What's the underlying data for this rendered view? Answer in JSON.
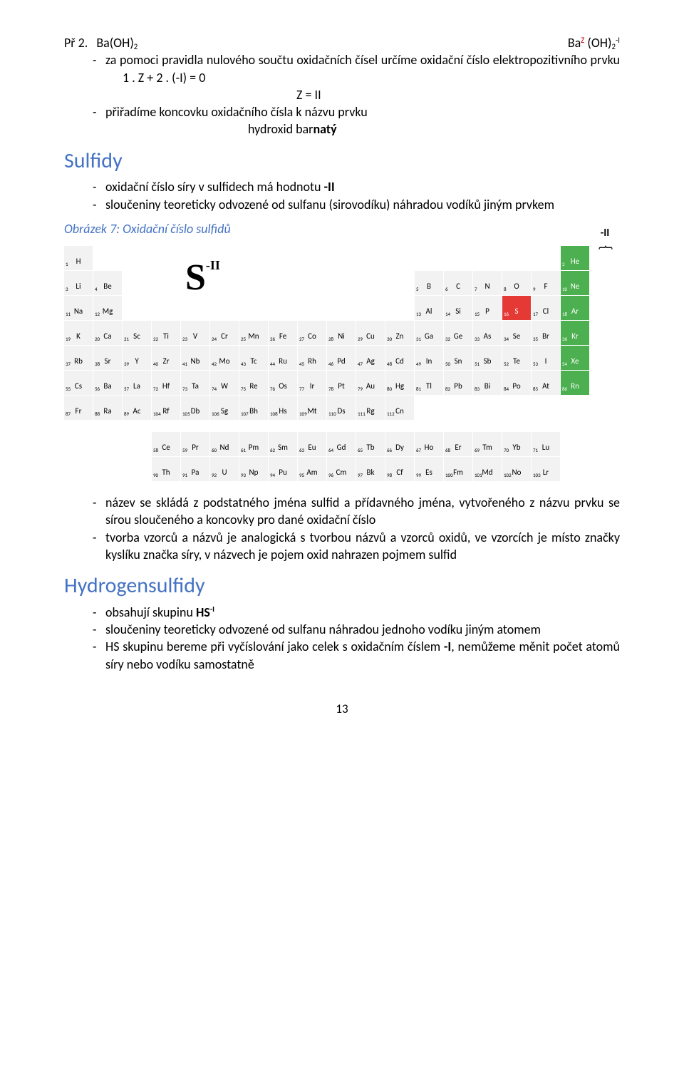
{
  "ex_prefix": "Př 2.",
  "formula_left": "Ba(OH)",
  "formula_right_ba": "Ba",
  "formula_right_oh": "(OH)",
  "formula_z": "Z",
  "formula_two": "2",
  "formula_neg_i": "-I",
  "rule1": "za pomoci pravidla nulového součtu oxidačních čísel určíme oxidační číslo elektropozitivního prvku",
  "rule1_eq": "1 . Z  + 2 . (-I) = 0",
  "rule1_eq2": "Z = II",
  "rule2": "přiřadíme koncovku oxidačního čísla k názvu prvku",
  "rule2_res_pre": "hydroxid bar",
  "rule2_res_bold": "natý",
  "sulfidy_head": "Sulfidy",
  "sulfidy_b1_pre": "oxidační číslo síry v sulfidech má hodnotu ",
  "sulfidy_b1_bold": "-II",
  "sulfidy_b2": "sloučeniny teoreticky odvozené od sulfanu (sirovodíku) náhradou vodíků jiným prvkem",
  "fig_caption": "Obrázek 7: Oxidační číslo sulfidů",
  "brace_label": "-II",
  "s_symbol": "S",
  "s_charge": "-II",
  "s2_b1": "název se skládá z podstatného jména sulfid a přídavného jména, vytvořeného z názvu prvku se sírou sloučeného a koncovky pro dané oxidační číslo",
  "s2_b2": "tvorba vzorců a názvů je analogická s tvorbou názvů a vzorců oxidů, ve vzorcích je místo značky kyslíku značka síry, v názvech je pojem oxid nahrazen pojmem sulfid",
  "hs_head": "Hydrogensulfidy",
  "hs_b1_pre": "obsahují skupinu ",
  "hs_b1_bold": "HS",
  "hs_b1_sup": "-I",
  "hs_b2": "sloučeniny teoreticky odvozené od sulfanu náhradou jednoho vodíku jiným atomem",
  "hs_b3_pre": "HS skupinu bereme při vyčíslování jako celek s oxidačním číslem ",
  "hs_b3_bold": "-I",
  "hs_b3_post": ", nemůžeme měnit počet atomů síry nebo vodíku samostatně",
  "page_num": "13",
  "ptable": {
    "rows": [
      [
        {
          "n": 1,
          "s": "H"
        },
        null,
        null,
        null,
        null,
        null,
        null,
        null,
        null,
        null,
        null,
        null,
        null,
        null,
        null,
        null,
        null,
        {
          "n": 2,
          "s": "He",
          "c": "green"
        }
      ],
      [
        {
          "n": 3,
          "s": "Li"
        },
        {
          "n": 4,
          "s": "Be"
        },
        null,
        null,
        null,
        null,
        null,
        null,
        null,
        null,
        null,
        null,
        {
          "n": 5,
          "s": "B"
        },
        {
          "n": 6,
          "s": "C"
        },
        {
          "n": 7,
          "s": "N"
        },
        {
          "n": 8,
          "s": "O"
        },
        {
          "n": 9,
          "s": "F"
        },
        {
          "n": 10,
          "s": "Ne",
          "c": "green"
        }
      ],
      [
        {
          "n": 11,
          "s": "Na"
        },
        {
          "n": 12,
          "s": "Mg"
        },
        null,
        null,
        null,
        null,
        null,
        null,
        null,
        null,
        null,
        null,
        {
          "n": 13,
          "s": "Al"
        },
        {
          "n": 14,
          "s": "Si"
        },
        {
          "n": 15,
          "s": "P"
        },
        {
          "n": 16,
          "s": "S",
          "c": "red"
        },
        {
          "n": 17,
          "s": "Cl"
        },
        {
          "n": 18,
          "s": "Ar",
          "c": "green"
        }
      ],
      [
        {
          "n": 19,
          "s": "K"
        },
        {
          "n": 20,
          "s": "Ca"
        },
        {
          "n": 21,
          "s": "Sc"
        },
        {
          "n": 22,
          "s": "Ti"
        },
        {
          "n": 23,
          "s": "V"
        },
        {
          "n": 24,
          "s": "Cr"
        },
        {
          "n": 25,
          "s": "Mn"
        },
        {
          "n": 26,
          "s": "Fe"
        },
        {
          "n": 27,
          "s": "Co"
        },
        {
          "n": 28,
          "s": "Ni"
        },
        {
          "n": 29,
          "s": "Cu"
        },
        {
          "n": 30,
          "s": "Zn"
        },
        {
          "n": 31,
          "s": "Ga"
        },
        {
          "n": 32,
          "s": "Ge"
        },
        {
          "n": 33,
          "s": "As"
        },
        {
          "n": 34,
          "s": "Se"
        },
        {
          "n": 35,
          "s": "Br"
        },
        {
          "n": 36,
          "s": "Kr",
          "c": "green"
        }
      ],
      [
        {
          "n": 37,
          "s": "Rb"
        },
        {
          "n": 38,
          "s": "Sr"
        },
        {
          "n": 39,
          "s": "Y"
        },
        {
          "n": 40,
          "s": "Zr"
        },
        {
          "n": 41,
          "s": "Nb"
        },
        {
          "n": 42,
          "s": "Mo"
        },
        {
          "n": 43,
          "s": "Tc"
        },
        {
          "n": 44,
          "s": "Ru"
        },
        {
          "n": 45,
          "s": "Rh"
        },
        {
          "n": 46,
          "s": "Pd"
        },
        {
          "n": 47,
          "s": "Ag"
        },
        {
          "n": 48,
          "s": "Cd"
        },
        {
          "n": 49,
          "s": "In"
        },
        {
          "n": 50,
          "s": "Sn"
        },
        {
          "n": 51,
          "s": "Sb"
        },
        {
          "n": 52,
          "s": "Te"
        },
        {
          "n": 53,
          "s": "I"
        },
        {
          "n": 54,
          "s": "Xe",
          "c": "green"
        }
      ],
      [
        {
          "n": 55,
          "s": "Cs"
        },
        {
          "n": 56,
          "s": "Ba"
        },
        {
          "n": 57,
          "s": "La"
        },
        {
          "n": 72,
          "s": "Hf"
        },
        {
          "n": 73,
          "s": "Ta"
        },
        {
          "n": 74,
          "s": "W"
        },
        {
          "n": 75,
          "s": "Re"
        },
        {
          "n": 76,
          "s": "Os"
        },
        {
          "n": 77,
          "s": "Ir"
        },
        {
          "n": 78,
          "s": "Pt"
        },
        {
          "n": 79,
          "s": "Au"
        },
        {
          "n": 80,
          "s": "Hg"
        },
        {
          "n": 81,
          "s": "Tl"
        },
        {
          "n": 82,
          "s": "Pb"
        },
        {
          "n": 83,
          "s": "Bi"
        },
        {
          "n": 84,
          "s": "Po"
        },
        {
          "n": 85,
          "s": "At"
        },
        {
          "n": 86,
          "s": "Rn",
          "c": "green"
        }
      ],
      [
        {
          "n": 87,
          "s": "Fr"
        },
        {
          "n": 88,
          "s": "Ra"
        },
        {
          "n": 89,
          "s": "Ac"
        },
        {
          "n": 104,
          "s": "Rf"
        },
        {
          "n": 105,
          "s": "Db"
        },
        {
          "n": 106,
          "s": "Sg"
        },
        {
          "n": 107,
          "s": "Bh"
        },
        {
          "n": 108,
          "s": "Hs"
        },
        {
          "n": 109,
          "s": "Mt"
        },
        {
          "n": 110,
          "s": "Ds"
        },
        {
          "n": 111,
          "s": "Rg"
        },
        {
          "n": 112,
          "s": "Cn"
        },
        null,
        null,
        null,
        null,
        null,
        null
      ]
    ],
    "lanth": [
      [
        {
          "n": 58,
          "s": "Ce"
        },
        {
          "n": 59,
          "s": "Pr"
        },
        {
          "n": 60,
          "s": "Nd"
        },
        {
          "n": 61,
          "s": "Pm"
        },
        {
          "n": 62,
          "s": "Sm"
        },
        {
          "n": 63,
          "s": "Eu"
        },
        {
          "n": 64,
          "s": "Gd"
        },
        {
          "n": 65,
          "s": "Tb"
        },
        {
          "n": 66,
          "s": "Dy"
        },
        {
          "n": 67,
          "s": "Ho"
        },
        {
          "n": 68,
          "s": "Er"
        },
        {
          "n": 69,
          "s": "Tm"
        },
        {
          "n": 70,
          "s": "Yb"
        },
        {
          "n": 71,
          "s": "Lu"
        }
      ],
      [
        {
          "n": 90,
          "s": "Th"
        },
        {
          "n": 91,
          "s": "Pa"
        },
        {
          "n": 92,
          "s": "U"
        },
        {
          "n": 93,
          "s": "Np"
        },
        {
          "n": 94,
          "s": "Pu"
        },
        {
          "n": 95,
          "s": "Am"
        },
        {
          "n": 96,
          "s": "Cm"
        },
        {
          "n": 97,
          "s": "Bk"
        },
        {
          "n": 98,
          "s": "Cf"
        },
        {
          "n": 99,
          "s": "Es"
        },
        {
          "n": 100,
          "s": "Fm"
        },
        {
          "n": 101,
          "s": "Md"
        },
        {
          "n": 102,
          "s": "No"
        },
        {
          "n": 103,
          "s": "Lr"
        }
      ]
    ]
  }
}
